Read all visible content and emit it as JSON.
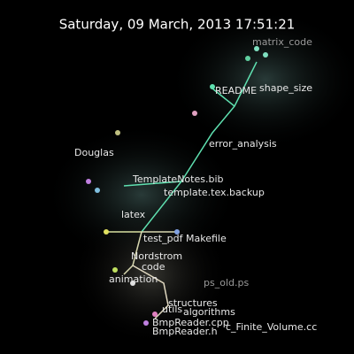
{
  "header": {
    "timestamp": "Saturday, 09 March, 2013 17:51:21"
  },
  "labels": [
    "README",
    "shape_size",
    "error_analysis",
    "Douglas",
    "TemplateNotes.bib",
    "template.tex.backup",
    "latex",
    "test_pdf",
    "Makefile",
    "Nordstrom",
    "code",
    "animation",
    "structures",
    "ps_old.ps",
    "utils",
    "algorithms",
    "BmpReader.cpp",
    "c_Finite_Volume.cc",
    "BmpReader.h",
    "matrix_code"
  ]
}
